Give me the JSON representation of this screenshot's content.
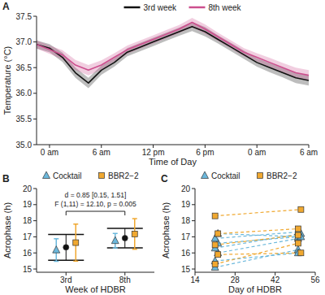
{
  "chart_data": [
    {
      "type": "line",
      "panel_label": "A",
      "x_label": "Time of Day",
      "y_label": "Temperature (°C)",
      "x": [
        -1.5,
        0,
        1.5,
        3,
        4.5,
        6,
        7.5,
        9,
        10.5,
        12,
        13.5,
        15,
        16.5,
        18,
        19.5,
        21,
        22.5,
        24,
        25.5,
        27,
        28.5,
        30
      ],
      "series": [
        {
          "name": "3rd week",
          "color": "#111111",
          "values": [
            36.95,
            36.88,
            36.7,
            36.4,
            36.2,
            36.45,
            36.6,
            36.8,
            36.9,
            37.0,
            37.1,
            37.2,
            37.3,
            37.2,
            37.05,
            36.9,
            36.75,
            36.6,
            36.5,
            36.4,
            36.3,
            36.25
          ],
          "error": [
            0.08,
            0.08,
            0.09,
            0.1,
            0.1,
            0.09,
            0.08,
            0.08,
            0.08,
            0.08,
            0.08,
            0.08,
            0.09,
            0.09,
            0.08,
            0.08,
            0.08,
            0.08,
            0.09,
            0.09,
            0.1,
            0.1
          ]
        },
        {
          "name": "8th week",
          "color": "#cc4f8e",
          "values": [
            36.95,
            36.85,
            36.75,
            36.55,
            36.45,
            36.55,
            36.7,
            36.85,
            36.95,
            37.05,
            37.15,
            37.25,
            37.38,
            37.25,
            37.1,
            36.95,
            36.8,
            36.7,
            36.6,
            36.5,
            36.4,
            36.35
          ],
          "error": [
            0.08,
            0.08,
            0.09,
            0.1,
            0.1,
            0.09,
            0.08,
            0.08,
            0.08,
            0.08,
            0.08,
            0.08,
            0.09,
            0.09,
            0.08,
            0.08,
            0.08,
            0.08,
            0.09,
            0.09,
            0.1,
            0.1
          ]
        }
      ],
      "xlim": [
        -1.5,
        30
      ],
      "xticks": [
        {
          "value": 0,
          "label": "0 am"
        },
        {
          "value": 6,
          "label": "6 am"
        },
        {
          "value": 12,
          "label": "12 pm"
        },
        {
          "value": 18,
          "label": "6 pm"
        },
        {
          "value": 24,
          "label": "0 am"
        },
        {
          "value": 30,
          "label": "6 am"
        }
      ],
      "ylim": [
        35.0,
        37.5
      ],
      "yticks": [
        {
          "value": 35,
          "label": "35.0"
        },
        35.5,
        {
          "value": 36,
          "label": "36.0"
        },
        36.5,
        {
          "value": 37,
          "label": "37.0"
        },
        37.5
      ],
      "legend": "top"
    },
    {
      "type": "scatter",
      "panel_label": "B",
      "x_label": "Week of HDBR",
      "y_label": "Acrophase (h)",
      "categories": [
        "3rd",
        "8th"
      ],
      "series": [
        {
          "name": "Cocktail",
          "color": "#6bb8dc",
          "marker": "triangle",
          "values": [
            16.18,
            16.76
          ],
          "error": [
            0.7,
            0.45
          ]
        },
        {
          "name": "BBR2−2",
          "color": "#f0a830",
          "marker": "square",
          "values": [
            16.64,
            17.18
          ],
          "error": [
            1.15,
            0.95
          ]
        }
      ],
      "overall": {
        "color": "#111111",
        "marker": "circle",
        "values": [
          16.35,
          16.92
        ],
        "error": [
          0.8,
          0.6
        ]
      },
      "annotations": [
        "d = 0.85 [0.15, 1.51]",
        "F (1,11) = 12.10, p = 0.005"
      ],
      "ylim": [
        14.8,
        20
      ],
      "yticks": [
        15,
        16,
        17,
        18,
        19,
        20
      ],
      "legend": "top"
    },
    {
      "type": "scatter",
      "panel_label": "C",
      "x_label": "Day of HDBR",
      "y_label": "Acrophase (h)",
      "series": [
        {
          "name": "Cocktail",
          "color": "#6bb8dc",
          "marker": "triangle",
          "line_style": "dashed",
          "x": [
            [
              21,
              50
            ],
            [
              21,
              50
            ],
            [
              22,
              50
            ],
            [
              21,
              51
            ],
            [
              22,
              50
            ],
            [
              21,
              50
            ],
            [
              22,
              51
            ]
          ],
          "values": [
            [
              15.1,
              16.2
            ],
            [
              15.5,
              16.0
            ],
            [
              16.0,
              16.9
            ],
            [
              16.3,
              17.2
            ],
            [
              16.6,
              17.0
            ],
            [
              16.9,
              17.3
            ],
            [
              17.2,
              17.0
            ]
          ]
        },
        {
          "name": "BBR2−2",
          "color": "#f0a830",
          "marker": "square",
          "line_style": "dashed",
          "x": [
            [
              21,
              51
            ],
            [
              22,
              50
            ],
            [
              21,
              50
            ],
            [
              22,
              51
            ],
            [
              21,
              50
            ]
          ],
          "values": [
            [
              18.3,
              18.7
            ],
            [
              17.2,
              17.5
            ],
            [
              16.5,
              17.1
            ],
            [
              15.9,
              16.0
            ],
            [
              15.3,
              16.6
            ]
          ]
        }
      ],
      "xlim": [
        14,
        56
      ],
      "xticks": [
        14,
        28,
        42,
        56
      ],
      "ylim": [
        14.8,
        20
      ],
      "yticks": [
        15,
        16,
        17,
        18,
        19,
        20
      ],
      "legend": "top"
    }
  ]
}
